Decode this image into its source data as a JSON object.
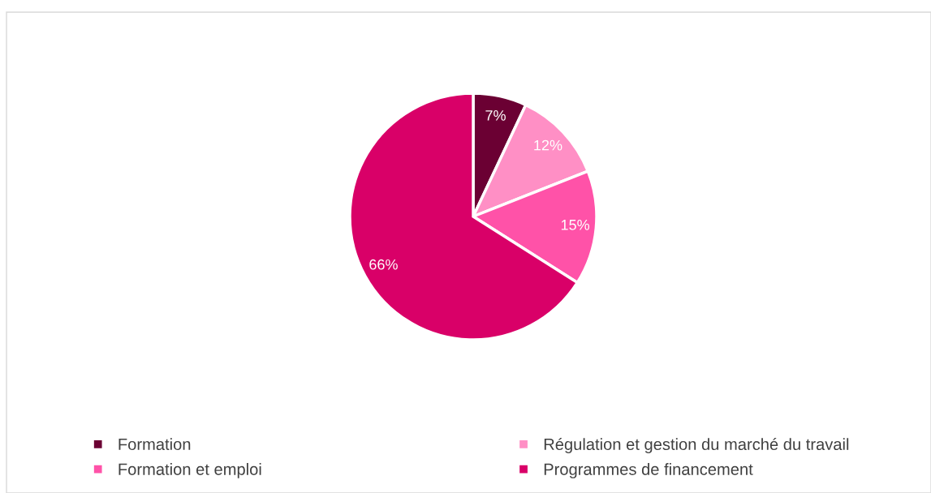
{
  "chart_data": {
    "type": "pie",
    "categories": [
      "Formation",
      "Régulation et gestion du marché du travail",
      "Formation et emploi",
      "Programmes de financement"
    ],
    "values": [
      7,
      12,
      15,
      66
    ],
    "colors": [
      "#6b0033",
      "#ff8fc5",
      "#ff52a8",
      "#d90068"
    ],
    "value_labels": [
      "7%",
      "12%",
      "15%",
      "66%"
    ],
    "legend": "bottom"
  }
}
